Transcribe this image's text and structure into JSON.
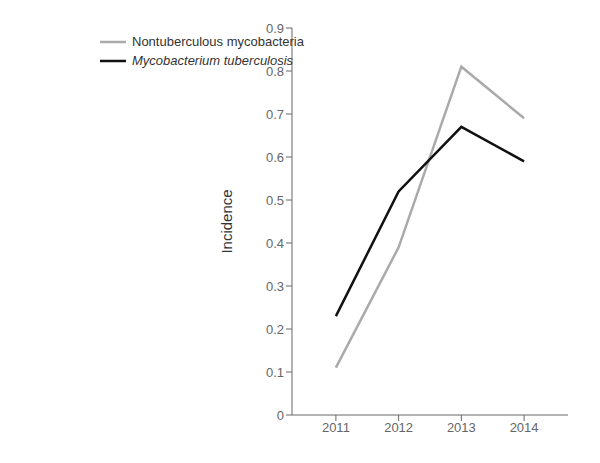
{
  "chart_data": {
    "type": "line",
    "x": [
      2011,
      2012,
      2013,
      2014
    ],
    "series": [
      {
        "name": "Nontuberculous mycobacteria",
        "color": "#aaaaaa",
        "values": [
          0.11,
          0.39,
          0.81,
          0.69
        ]
      },
      {
        "name": "Mycobacterium tuberculosis",
        "color": "#111111",
        "values": [
          0.23,
          0.52,
          0.67,
          0.59
        ]
      }
    ],
    "ylabel": "Incidence",
    "xlim": [
      2010.3,
      2014.7
    ],
    "xticks": [
      2011,
      2012,
      2013,
      2014
    ],
    "ylim": [
      0,
      0.9
    ],
    "yticks": [
      0,
      0.1,
      0.2,
      0.3,
      0.4,
      0.5,
      0.6,
      0.7,
      0.8,
      0.9
    ],
    "grid": false,
    "legend": "upper left"
  }
}
